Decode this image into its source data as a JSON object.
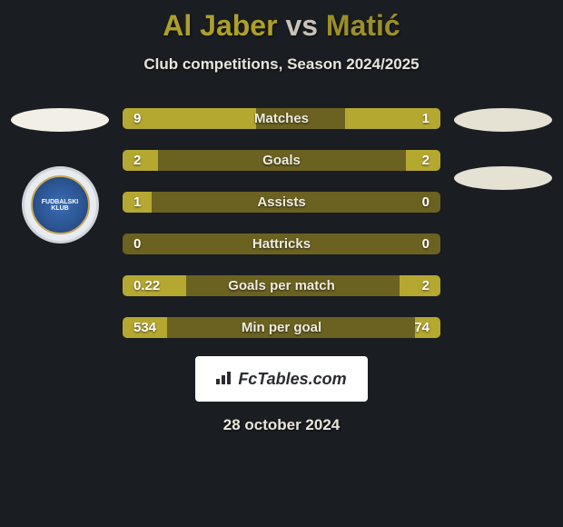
{
  "title": {
    "player1": "Al Jaber",
    "vs": "vs",
    "player2": "Matić"
  },
  "subtitle": "Club competitions, Season 2024/2025",
  "bars": [
    {
      "label": "Matches",
      "left_val": "9",
      "right_val": "1",
      "left_pct": 42,
      "right_pct": 30
    },
    {
      "label": "Goals",
      "left_val": "2",
      "right_val": "2",
      "left_pct": 11,
      "right_pct": 11
    },
    {
      "label": "Assists",
      "left_val": "1",
      "right_val": "0",
      "left_pct": 9,
      "right_pct": 0
    },
    {
      "label": "Hattricks",
      "left_val": "0",
      "right_val": "0",
      "left_pct": 0,
      "right_pct": 0
    },
    {
      "label": "Goals per match",
      "left_val": "0.22",
      "right_val": "2",
      "left_pct": 20,
      "right_pct": 13
    },
    {
      "label": "Min per goal",
      "left_val": "534",
      "right_val": "74",
      "left_pct": 14,
      "right_pct": 8
    }
  ],
  "colors": {
    "bg": "#1a1d21",
    "bar_base": "#6b6222",
    "bar_fill": "#b5a831",
    "title_p1": "#ada02a",
    "title_p2": "#c8c4b8",
    "title_p3": "#9b8f2a"
  },
  "logo": "FcTables.com",
  "date": "28 october 2024",
  "badges": {
    "left_club_text": "FUDBALSKI KLUB"
  }
}
